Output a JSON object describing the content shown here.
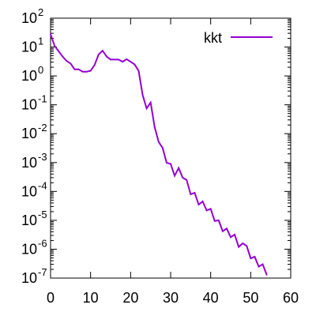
{
  "chart_data": {
    "type": "line",
    "title": "",
    "xlabel": "",
    "ylabel": "",
    "xlim": [
      0,
      60
    ],
    "ylim_log10": [
      -7,
      2
    ],
    "yscale": "log",
    "grid": false,
    "legend_placement": "top-right",
    "x_ticks": [
      "0",
      "10",
      "20",
      "30",
      "40",
      "50",
      "60"
    ],
    "y_ticks": [
      {
        "base": "10",
        "exp": "-7"
      },
      {
        "base": "10",
        "exp": "-6"
      },
      {
        "base": "10",
        "exp": "-5"
      },
      {
        "base": "10",
        "exp": "-4"
      },
      {
        "base": "10",
        "exp": "-3"
      },
      {
        "base": "10",
        "exp": "-2"
      },
      {
        "base": "10",
        "exp": "-1"
      },
      {
        "base": "10",
        "exp": "0"
      },
      {
        "base": "10",
        "exp": "1"
      },
      {
        "base": "10",
        "exp": "2"
      }
    ],
    "series": [
      {
        "name": "kkt",
        "color": "#9400d3",
        "x": [
          0,
          1,
          2,
          3,
          4,
          5,
          6,
          7,
          8,
          9,
          10,
          11,
          12,
          13,
          14,
          15,
          16,
          17,
          18,
          19,
          20,
          21,
          22,
          23,
          24,
          25,
          26,
          27,
          28,
          29,
          30,
          31,
          32,
          33,
          34,
          35,
          36,
          37,
          38,
          39,
          40,
          41,
          42,
          43,
          44,
          45,
          46,
          47,
          48,
          49,
          50,
          51,
          52,
          53,
          54
        ],
        "y": [
          28,
          11,
          7.2,
          4.7,
          3.3,
          2.7,
          1.7,
          1.7,
          1.4,
          1.4,
          1.5,
          2.4,
          5.5,
          7.5,
          4.7,
          3.7,
          3.7,
          3.7,
          3.1,
          3.8,
          3.1,
          2.5,
          1.5,
          0.22,
          0.075,
          0.12,
          0.017,
          0.0052,
          0.0032,
          0.00098,
          0.0009,
          0.00035,
          0.00065,
          0.0003,
          0.00025,
          8e-05,
          9e-05,
          3.5e-05,
          4.5e-05,
          2.2e-05,
          2.5e-05,
          9.5e-06,
          1e-05,
          4.2e-06,
          5.2e-06,
          2.6e-06,
          3.2e-06,
          1.2e-06,
          1.6e-06,
          1.3e-06,
          4.8e-07,
          5.5e-07,
          2.5e-07,
          3e-07,
          1.3e-07
        ]
      }
    ]
  }
}
